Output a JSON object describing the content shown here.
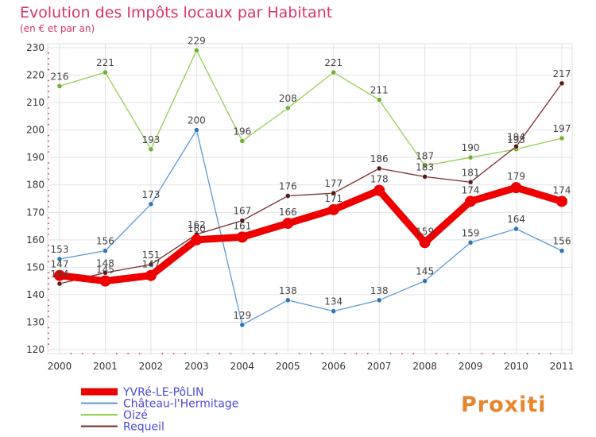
{
  "chart_data": {
    "type": "line",
    "title": "Evolution des Impôts locaux par Habitant",
    "subtitle": "(en € et par an)",
    "xlabel": "",
    "ylabel": "",
    "x": [
      "2000",
      "2001",
      "2002",
      "2003",
      "2004",
      "2005",
      "2006",
      "2007",
      "2008",
      "2009",
      "2010",
      "2011"
    ],
    "ylim": [
      120,
      230
    ],
    "yticks": [
      120,
      130,
      140,
      150,
      160,
      170,
      180,
      190,
      200,
      210,
      220,
      230
    ],
    "grid": true,
    "legend_position": "bottom-left",
    "series": [
      {
        "name": "YVRé-LE-PôLIN",
        "color": "#ee0000",
        "values": [
          147,
          145,
          147,
          160,
          161,
          166,
          171,
          178,
          159,
          174,
          179,
          174
        ],
        "labels": [
          "147",
          "145",
          "147",
          "160",
          "161",
          "166",
          "171",
          "178",
          "159",
          "174",
          "179",
          "174"
        ]
      },
      {
        "name": "Château-l'Hermitage",
        "color": "#5b9bd5",
        "values": [
          153,
          156,
          173,
          200,
          129,
          138,
          134,
          138,
          145,
          159,
          164,
          156
        ],
        "labels": [
          "153",
          "156",
          "173",
          "200",
          "129",
          "138",
          "134",
          "138",
          "145",
          "159",
          "164",
          "156"
        ]
      },
      {
        "name": "Oizé",
        "color": "#92d050",
        "values": [
          216,
          221,
          193,
          229,
          196,
          208,
          221,
          211,
          187,
          190,
          193,
          197
        ],
        "labels": [
          "216",
          "221",
          "193",
          "229",
          "196",
          "208",
          "221",
          "211",
          "187",
          "190",
          "193",
          "197"
        ]
      },
      {
        "name": "Requeil",
        "color": "#7b2c2c",
        "values": [
          144,
          148,
          151,
          162,
          167,
          176,
          177,
          186,
          183,
          181,
          194,
          217
        ],
        "labels": [
          "144",
          "148",
          "151",
          "162",
          "167",
          "176",
          "177",
          "186",
          "183",
          "181",
          "194",
          "217"
        ]
      }
    ]
  },
  "logo": {
    "text": "Proxiti"
  }
}
